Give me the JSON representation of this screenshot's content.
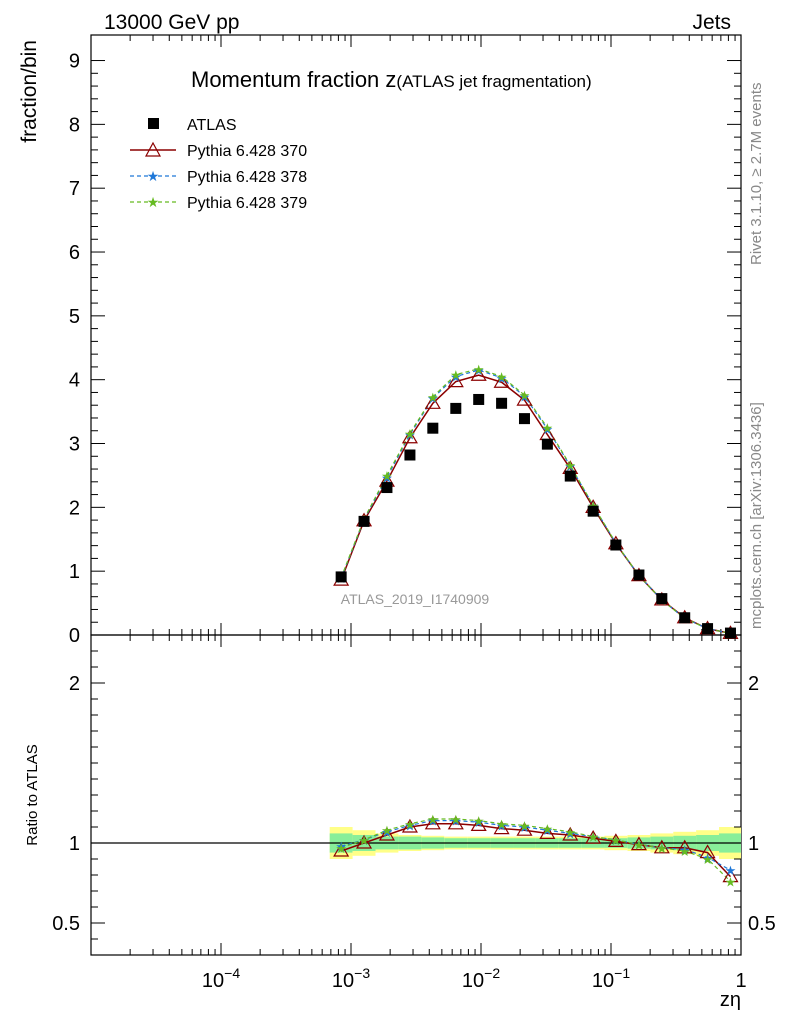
{
  "header": {
    "left": "13000 GeV pp",
    "right": "Jets"
  },
  "side": {
    "rivet": "Rivet 3.1.10, ≥ 2.7M events",
    "mcplots": "mcplots.cern.ch [arXiv:1306.3436]"
  },
  "chart_data": {
    "type": "scatter",
    "title_main": "Momentum fraction z",
    "title_sub": "(ATLAS jet fragmentation)",
    "watermark": "ATLAS_2019_I1740909",
    "xlabel": "zη",
    "ylabel": "fraction/bin",
    "ratio_ylabel": "Ratio to ATLAS",
    "xscale": "log",
    "xlim": [
      1e-05,
      1
    ],
    "ylim": [
      0,
      9.4
    ],
    "ratio_ylim": [
      0.3,
      2.3
    ],
    "x_ticks": [
      {
        "v": 0.0001,
        "base": "10",
        "exp": "−4"
      },
      {
        "v": 0.001,
        "base": "10",
        "exp": "−3"
      },
      {
        "v": 0.01,
        "base": "10",
        "exp": "−2"
      },
      {
        "v": 0.1,
        "base": "10",
        "exp": "−1"
      },
      {
        "v": 1,
        "base": "1",
        "exp": ""
      }
    ],
    "y_ticks": [
      "0",
      "1",
      "2",
      "3",
      "4",
      "5",
      "6",
      "7",
      "8",
      "9"
    ],
    "ratio_y_ticks": [
      {
        "v": 0.5,
        "t": "0.5"
      },
      {
        "v": 1,
        "t": "1"
      },
      {
        "v": 2,
        "t": "2"
      }
    ],
    "x": [
      0.00084,
      0.00126,
      0.00189,
      0.00284,
      0.00426,
      0.0064,
      0.0096,
      0.0144,
      0.0216,
      0.0324,
      0.0486,
      0.0729,
      0.109,
      0.164,
      0.246,
      0.369,
      0.553,
      0.83
    ],
    "data": {
      "name": "ATLAS",
      "values": [
        0.91,
        1.78,
        2.31,
        2.82,
        3.24,
        3.55,
        3.69,
        3.63,
        3.39,
        2.99,
        2.49,
        1.94,
        1.41,
        0.94,
        0.57,
        0.27,
        0.1,
        0.03
      ],
      "band_inner": [
        0.06,
        0.05,
        0.04,
        0.04,
        0.035,
        0.03,
        0.03,
        0.03,
        0.03,
        0.03,
        0.03,
        0.03,
        0.03,
        0.035,
        0.04,
        0.045,
        0.05,
        0.06
      ],
      "band_outer": [
        0.1,
        0.08,
        0.06,
        0.05,
        0.045,
        0.04,
        0.04,
        0.04,
        0.04,
        0.04,
        0.04,
        0.04,
        0.045,
        0.05,
        0.06,
        0.07,
        0.08,
        0.1
      ],
      "color": "#000000"
    },
    "series": [
      {
        "name": "Pythia 6.428 370",
        "values": [
          0.86,
          1.79,
          2.41,
          3.09,
          3.63,
          3.97,
          4.07,
          3.96,
          3.68,
          3.14,
          2.61,
          2.0,
          1.43,
          0.93,
          0.55,
          0.27,
          0.1,
          0.025
        ],
        "ratio": [
          0.95,
          1.0,
          1.05,
          1.1,
          1.12,
          1.12,
          1.11,
          1.09,
          1.08,
          1.06,
          1.05,
          1.03,
          1.01,
          0.99,
          0.97,
          0.97,
          0.94,
          0.79
        ],
        "color": "#8b0000",
        "style": "solid",
        "marker": "triangle-open"
      },
      {
        "name": "Pythia 6.428 378",
        "values": [
          0.89,
          1.81,
          2.47,
          3.14,
          3.71,
          4.05,
          4.15,
          4.03,
          3.74,
          3.23,
          2.65,
          2.03,
          1.44,
          0.93,
          0.55,
          0.26,
          0.1,
          0.025
        ],
        "ratio": [
          0.98,
          1.02,
          1.07,
          1.11,
          1.14,
          1.14,
          1.13,
          1.11,
          1.1,
          1.08,
          1.06,
          1.04,
          1.02,
          0.99,
          0.97,
          0.96,
          0.91,
          0.83
        ],
        "color": "#1f78d8",
        "style": "dashed",
        "marker": "star"
      },
      {
        "name": "Pythia 6.428 379",
        "values": [
          0.9,
          1.82,
          2.5,
          3.16,
          3.73,
          4.08,
          4.17,
          4.05,
          3.76,
          3.25,
          2.66,
          2.03,
          1.44,
          0.93,
          0.55,
          0.26,
          0.1,
          0.024
        ],
        "ratio": [
          0.97,
          1.02,
          1.08,
          1.12,
          1.15,
          1.15,
          1.14,
          1.12,
          1.11,
          1.09,
          1.07,
          1.04,
          1.02,
          0.99,
          0.97,
          0.95,
          0.9,
          0.76
        ],
        "color": "#66bb22",
        "style": "dashed",
        "marker": "star"
      }
    ]
  }
}
